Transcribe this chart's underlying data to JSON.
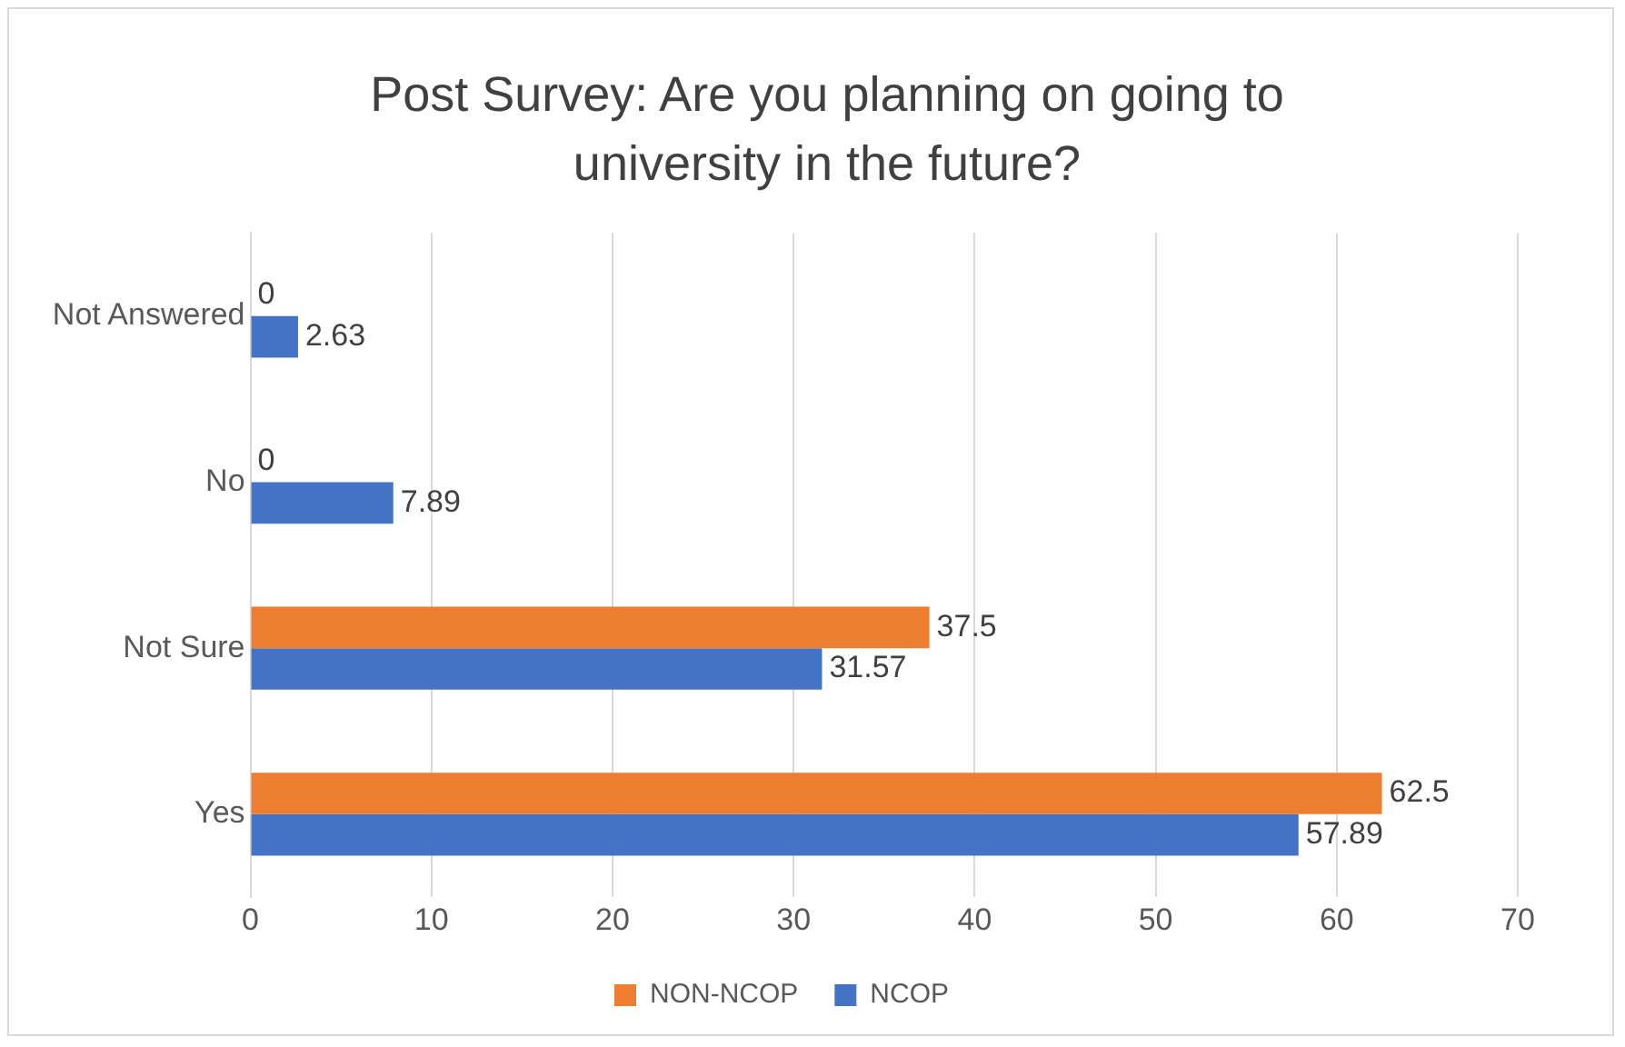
{
  "chart_data": {
    "type": "bar",
    "orientation": "horizontal",
    "title": "Post Survey: Are you planning on going to university in the future?",
    "categories": [
      "Not Answered",
      "No",
      "Not Sure",
      "Yes"
    ],
    "series": [
      {
        "name": "NON-NCOP",
        "color": "#ed7d31",
        "values": [
          0,
          0,
          37.5,
          62.5
        ]
      },
      {
        "name": "NCOP",
        "color": "#4472c4",
        "values": [
          2.63,
          7.89,
          31.57,
          57.89
        ]
      }
    ],
    "xlim": [
      0,
      70
    ],
    "xticks": [
      0,
      10,
      20,
      30,
      40,
      50,
      60,
      70
    ],
    "grid": "x",
    "legend": "bottom",
    "data_labels": true
  }
}
